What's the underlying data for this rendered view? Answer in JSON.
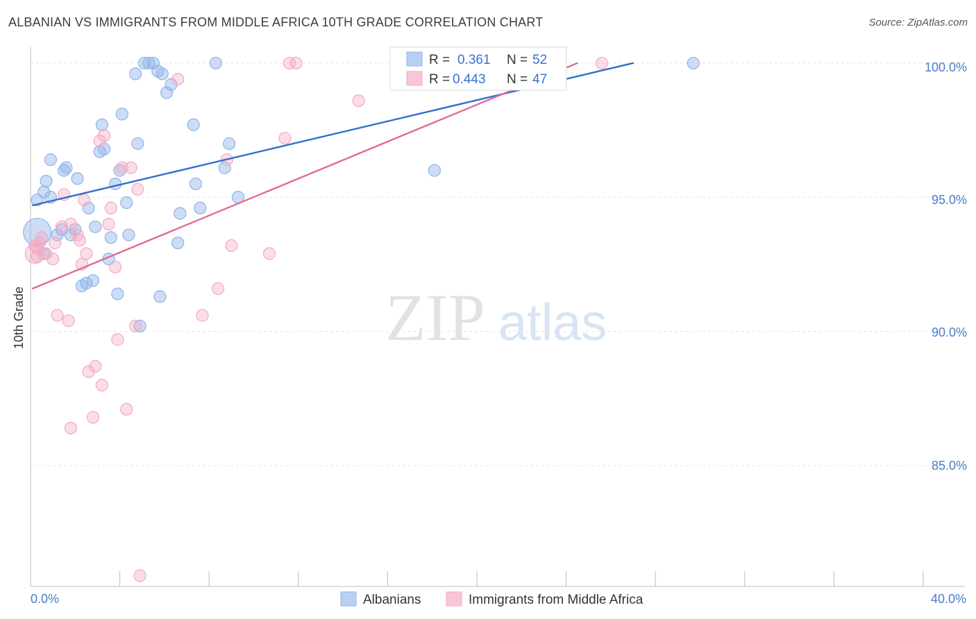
{
  "title": "ALBANIAN VS IMMIGRANTS FROM MIDDLE AFRICA 10TH GRADE CORRELATION CHART",
  "source": "Source: ZipAtlas.com",
  "watermark": {
    "zip": "ZIP",
    "atlas": "atlas"
  },
  "legend_box": {
    "rows": [
      {
        "r_label": "R =",
        "r_value": "0.361",
        "n_label": "N =",
        "n_value": "52"
      },
      {
        "r_label": "R =",
        "r_value": "0.443",
        "n_label": "N =",
        "n_value": "47"
      }
    ]
  },
  "chart_data": {
    "type": "scatter",
    "title": "ALBANIAN VS IMMIGRANTS FROM MIDDLE AFRICA 10TH GRADE CORRELATION CHART",
    "xlabel": "",
    "ylabel": "10th Grade",
    "xlim": [
      0,
      40
    ],
    "ylim": [
      80.5,
      100.8
    ],
    "x_tick_labels": [
      "0.0%",
      "40.0%"
    ],
    "y_ticks": [
      85,
      90,
      95,
      100
    ],
    "y_tick_labels": [
      "85.0%",
      "90.0%",
      "95.0%",
      "100.0%"
    ],
    "grid": true,
    "legend_position": "bottom",
    "series": [
      {
        "name": "Albanians",
        "color": "#8fb3e8",
        "line_color": "#2f6fcb",
        "r": 0.361,
        "n": 52,
        "trend": {
          "x0": 0.1,
          "y0": 94.7,
          "x1": 27.0,
          "y1": 100.0
        },
        "points": [
          [
            0.3,
            93.7
          ],
          [
            0.3,
            94.9
          ],
          [
            0.6,
            95.2
          ],
          [
            0.7,
            95.6
          ],
          [
            0.9,
            96.4
          ],
          [
            0.9,
            95.0
          ],
          [
            1.2,
            93.6
          ],
          [
            1.4,
            93.8
          ],
          [
            1.5,
            96.0
          ],
          [
            1.6,
            96.1
          ],
          [
            1.8,
            93.6
          ],
          [
            2.0,
            93.8
          ],
          [
            2.1,
            95.7
          ],
          [
            2.3,
            91.7
          ],
          [
            2.5,
            91.8
          ],
          [
            2.6,
            94.6
          ],
          [
            2.8,
            91.9
          ],
          [
            2.9,
            93.9
          ],
          [
            3.1,
            96.7
          ],
          [
            3.2,
            97.7
          ],
          [
            3.3,
            96.8
          ],
          [
            3.5,
            92.7
          ],
          [
            3.6,
            93.5
          ],
          [
            3.8,
            95.5
          ],
          [
            3.9,
            91.4
          ],
          [
            4.0,
            96.0
          ],
          [
            4.1,
            98.1
          ],
          [
            4.3,
            94.8
          ],
          [
            4.4,
            93.6
          ],
          [
            4.7,
            99.6
          ],
          [
            4.8,
            97.0
          ],
          [
            4.9,
            90.2
          ],
          [
            5.1,
            100.0
          ],
          [
            5.3,
            100.0
          ],
          [
            5.5,
            100.0
          ],
          [
            5.7,
            99.7
          ],
          [
            5.9,
            99.6
          ],
          [
            6.1,
            98.9
          ],
          [
            6.3,
            99.2
          ],
          [
            5.8,
            91.3
          ],
          [
            6.6,
            93.3
          ],
          [
            6.7,
            94.4
          ],
          [
            7.3,
            97.7
          ],
          [
            7.4,
            95.5
          ],
          [
            7.6,
            94.6
          ],
          [
            8.3,
            100.0
          ],
          [
            8.7,
            96.1
          ],
          [
            8.9,
            97.0
          ],
          [
            9.3,
            95.0
          ],
          [
            18.1,
            96.0
          ],
          [
            29.7,
            100.0
          ],
          [
            0.6,
            92.9
          ]
        ]
      },
      {
        "name": "Immigrants from Middle Africa",
        "color": "#f4a9c3",
        "line_color": "#e06a98",
        "r": 0.443,
        "n": 47,
        "trend": {
          "x0": 0.1,
          "y0": 91.6,
          "x1": 24.5,
          "y1": 100.0
        },
        "points": [
          [
            0.2,
            93.2
          ],
          [
            0.3,
            92.8
          ],
          [
            0.4,
            93.3
          ],
          [
            0.5,
            93.5
          ],
          [
            0.7,
            92.9
          ],
          [
            1.0,
            92.7
          ],
          [
            1.1,
            93.3
          ],
          [
            1.2,
            90.6
          ],
          [
            1.4,
            93.9
          ],
          [
            1.5,
            95.1
          ],
          [
            1.7,
            90.4
          ],
          [
            1.8,
            94.0
          ],
          [
            1.8,
            86.4
          ],
          [
            2.1,
            93.6
          ],
          [
            2.2,
            93.4
          ],
          [
            2.3,
            92.5
          ],
          [
            2.4,
            94.9
          ],
          [
            2.5,
            92.9
          ],
          [
            2.6,
            88.5
          ],
          [
            2.8,
            86.8
          ],
          [
            2.9,
            88.7
          ],
          [
            3.1,
            97.1
          ],
          [
            3.2,
            88.0
          ],
          [
            3.3,
            97.3
          ],
          [
            3.5,
            94.0
          ],
          [
            3.6,
            94.6
          ],
          [
            3.8,
            92.4
          ],
          [
            3.9,
            89.7
          ],
          [
            4.1,
            96.1
          ],
          [
            4.3,
            87.1
          ],
          [
            4.5,
            96.1
          ],
          [
            4.7,
            90.2
          ],
          [
            4.8,
            95.3
          ],
          [
            4.9,
            80.9
          ],
          [
            6.6,
            99.4
          ],
          [
            7.7,
            90.6
          ],
          [
            8.4,
            91.6
          ],
          [
            8.8,
            96.4
          ],
          [
            9.0,
            93.2
          ],
          [
            10.7,
            92.9
          ],
          [
            11.4,
            97.2
          ],
          [
            11.6,
            100.0
          ],
          [
            11.9,
            100.0
          ],
          [
            14.7,
            98.6
          ],
          [
            25.6,
            100.0
          ],
          [
            0.2,
            92.9
          ],
          [
            0.3,
            93.1
          ]
        ]
      }
    ]
  }
}
